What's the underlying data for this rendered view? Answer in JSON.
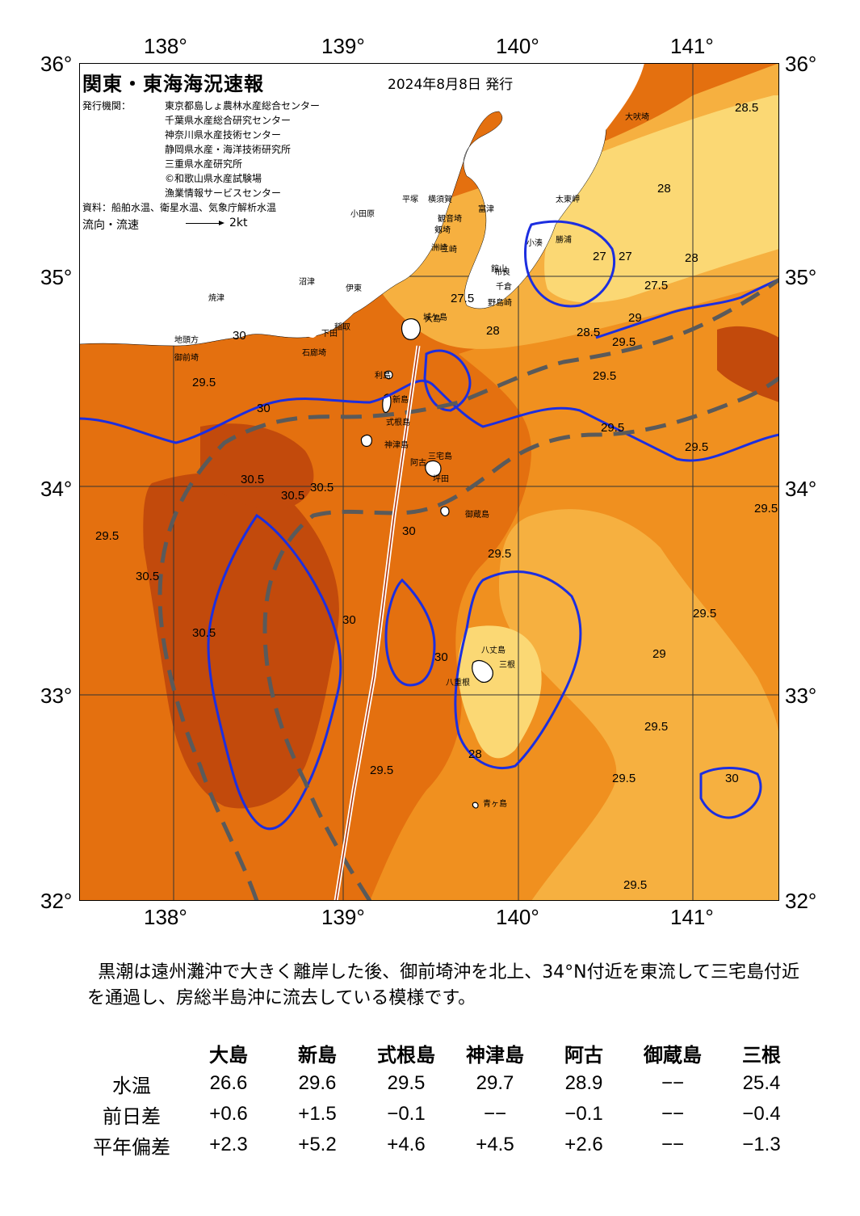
{
  "map": {
    "title": "関東・東海海況速報",
    "issue_date": "2024年8月8日 発行",
    "issuer_label": "発行機関：",
    "issuers": [
      "東京都島しょ農林水産総合センター",
      "千葉県水産総合研究センター",
      "神奈川県水産技術センター",
      "静岡県水産・海洋技術研究所",
      "三重県水産研究所",
      "©和歌山県水産試験場",
      "漁業情報サービスセンター"
    ],
    "source": "資料：船舶水温、衛星水温、気象庁解析水温",
    "flow_legend_label": "流向・流速",
    "flow_legend_unit": "2kt",
    "lon_labels": [
      "138°",
      "139°",
      "140°",
      "141°"
    ],
    "lat_labels": [
      "36°",
      "35°",
      "34°",
      "33°",
      "32°"
    ],
    "colors": {
      "very_warm": "#c24a0c",
      "warm": "#e4700f",
      "mid": "#f0901f",
      "cool": "#f6b040",
      "coolest": "#fbd874",
      "isotherm": "#1c2ee0",
      "kuroshio_axis": "#5a5a5a",
      "land": "#ffffff"
    },
    "place_names": [
      "大吠埼",
      "太東岬",
      "勝浦",
      "小湊",
      "洲崎",
      "布良",
      "野島崎",
      "千倉",
      "館山",
      "富津",
      "観音埼",
      "剱埼",
      "三崎",
      "城ケ島",
      "平塚",
      "横須賀",
      "小田原",
      "伊東",
      "稲取",
      "下田",
      "石廊埼",
      "御前埼",
      "地頭方",
      "焼津",
      "沼津",
      "利島",
      "新島",
      "式根島",
      "神津島",
      "三宅島",
      "坪田",
      "阿古",
      "御蔵島",
      "八丈島",
      "三根",
      "青ヶ島",
      "大島",
      "八重根"
    ],
    "isotherm_labels": [
      "27",
      "27.5",
      "28",
      "28.5",
      "29",
      "29.5",
      "30",
      "30.5"
    ]
  },
  "commentary": "黒潮は遠州灘沖で大きく離岸した後、御前埼沖を北上、34°N付近を東流して三宅島付近を通過し、房総半島沖に流去している模様です。",
  "temperature_table": {
    "stations": [
      "大島",
      "新島",
      "式根島",
      "神津島",
      "阿古",
      "御蔵島",
      "三根"
    ],
    "rows": [
      {
        "label": "水温",
        "values": [
          "26.6",
          "29.6",
          "29.5",
          "29.7",
          "28.9",
          "−−",
          "25.4"
        ]
      },
      {
        "label": "前日差",
        "values": [
          "+0.6",
          "+1.5",
          "−0.1",
          "−−",
          "−0.1",
          "−−",
          "−0.4"
        ]
      },
      {
        "label": "平年偏差",
        "values": [
          "+2.3",
          "+5.2",
          "+4.6",
          "+4.5",
          "+2.6",
          "−−",
          "−1.3"
        ]
      }
    ]
  }
}
